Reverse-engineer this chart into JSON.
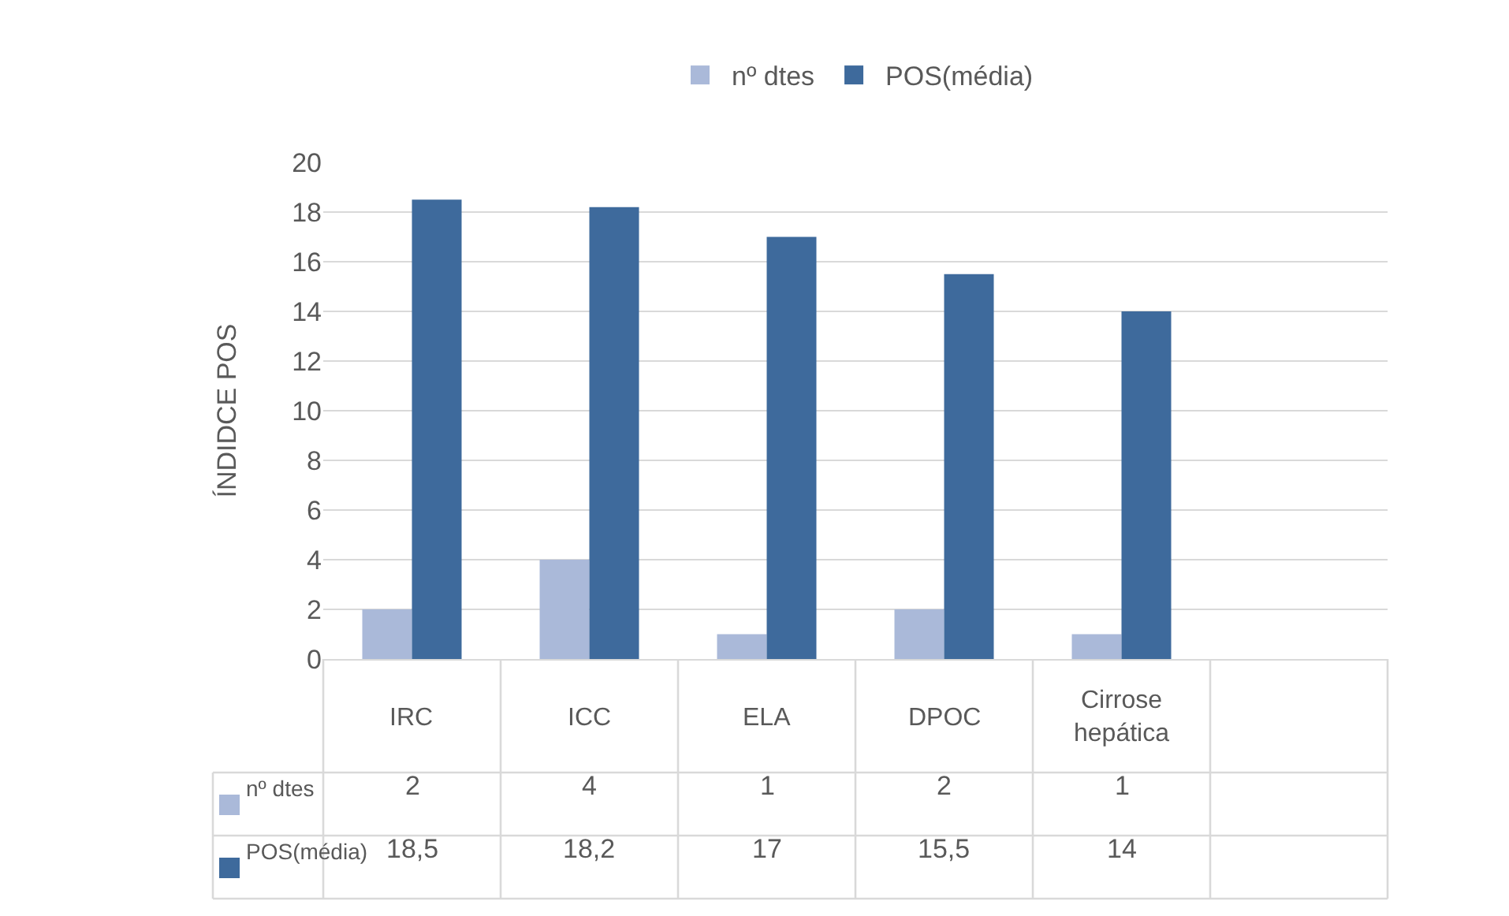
{
  "chart_data": {
    "type": "bar",
    "ylabel": "ÍNDIDCE POS",
    "categories": [
      "IRC",
      "ICC",
      "ELA",
      "DPOC",
      "Cirrose hepática",
      null
    ],
    "series": [
      {
        "name": "nº dtes",
        "color": "#aab9d9",
        "values": [
          2,
          4,
          1,
          2,
          1,
          null
        ],
        "value_labels": [
          "2",
          "4",
          "1",
          "2",
          "1",
          null
        ]
      },
      {
        "name": "POS(média)",
        "color": "#3e6a9c",
        "values": [
          18.5,
          18.2,
          17,
          15.5,
          14,
          null
        ],
        "value_labels": [
          "18,5",
          "18,2",
          "17",
          "15,5",
          "14",
          null
        ]
      }
    ],
    "ylim": [
      0,
      20
    ],
    "yticks": [
      0,
      2,
      4,
      6,
      8,
      10,
      12,
      14,
      16,
      18,
      20
    ],
    "grid": "y",
    "legend": "top"
  }
}
